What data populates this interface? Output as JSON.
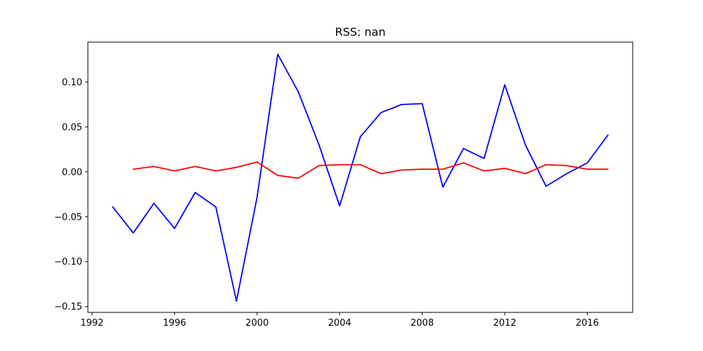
{
  "chart_data": {
    "type": "line",
    "title": "RSS: nan",
    "xlabel": "",
    "ylabel": "",
    "xlim": [
      1991.8,
      2018.2
    ],
    "ylim": [
      -0.1565,
      0.1445
    ],
    "xticks": [
      1992,
      1996,
      2000,
      2004,
      2008,
      2012,
      2016
    ],
    "yticks": [
      -0.15,
      -0.1,
      -0.05,
      0.0,
      0.05,
      0.1
    ],
    "ytick_labels": [
      "−0.15",
      "−0.10",
      "−0.05",
      "0.00",
      "0.05",
      "0.10"
    ],
    "grid": false,
    "series": [
      {
        "color": "#0000ff",
        "x": [
          1993,
          1994,
          1995,
          1996,
          1997,
          1998,
          1999,
          2000,
          2001,
          2002,
          2003,
          2004,
          2005,
          2006,
          2007,
          2008,
          2009,
          2010,
          2011,
          2012,
          2013,
          2014,
          2015,
          2016,
          2017
        ],
        "y": [
          -0.039,
          -0.068,
          -0.035,
          -0.063,
          -0.023,
          -0.039,
          -0.144,
          -0.028,
          0.131,
          0.089,
          0.03,
          -0.038,
          0.039,
          0.066,
          0.075,
          0.076,
          -0.017,
          0.026,
          0.015,
          0.097,
          0.03,
          -0.016,
          -0.002,
          0.01,
          0.041
        ]
      },
      {
        "color": "#ff0000",
        "x": [
          1994,
          1995,
          1996,
          1997,
          1998,
          1999,
          2000,
          2001,
          2002,
          2003,
          2004,
          2005,
          2006,
          2007,
          2008,
          2009,
          2010,
          2011,
          2012,
          2013,
          2014,
          2015,
          2016,
          2017
        ],
        "y": [
          0.003,
          0.006,
          0.001,
          0.006,
          0.001,
          0.005,
          0.011,
          -0.004,
          -0.007,
          0.007,
          0.008,
          0.008,
          -0.002,
          0.002,
          0.003,
          0.003,
          0.01,
          0.001,
          0.004,
          -0.002,
          0.008,
          0.007,
          0.003,
          0.003
        ]
      }
    ]
  }
}
